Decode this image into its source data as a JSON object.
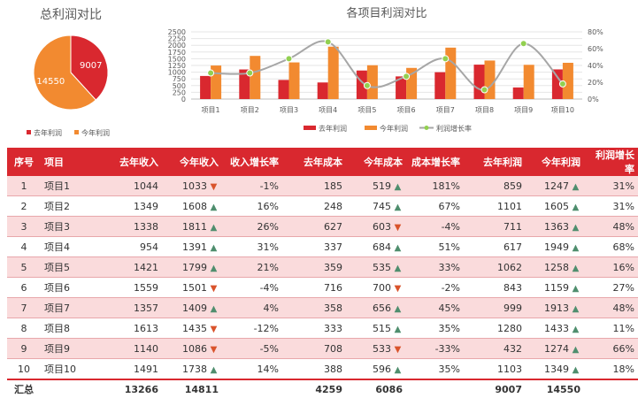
{
  "pie": {
    "title": "总利润对比",
    "legend": [
      "去年利润",
      "今年利润"
    ],
    "chart_data": {
      "type": "pie",
      "labels": [
        "去年利润",
        "今年利润"
      ],
      "values": [
        9007,
        14550
      ],
      "colors": [
        "#d9282f",
        "#f28a30"
      ]
    }
  },
  "combo": {
    "title": "各项目利润对比",
    "legend": [
      "去年利润",
      "今年利润",
      "利润增长率"
    ],
    "colors": {
      "last": "#d9282f",
      "this": "#f28a30",
      "rate": "#a6a6a6",
      "rate_marker": "#92d050"
    }
  },
  "chart_data": {
    "type": "bar",
    "categories": [
      "项目1",
      "项目2",
      "项目3",
      "项目4",
      "项目5",
      "项目6",
      "项目7",
      "项目8",
      "项目9",
      "项目10"
    ],
    "series": [
      {
        "name": "去年利润",
        "type": "bar",
        "axis": "left",
        "values": [
          859,
          1101,
          711,
          617,
          1062,
          843,
          999,
          1280,
          432,
          1103
        ]
      },
      {
        "name": "今年利润",
        "type": "bar",
        "axis": "left",
        "values": [
          1247,
          1605,
          1363,
          1949,
          1258,
          1159,
          1913,
          1433,
          1274,
          1349
        ]
      },
      {
        "name": "利润增长率",
        "type": "line",
        "axis": "right",
        "values": [
          31,
          31,
          48,
          68,
          16,
          27,
          48,
          11,
          66,
          18
        ]
      }
    ],
    "ylim": [
      0,
      2500
    ],
    "y_ticks": [
      "0",
      "250",
      "500",
      "750",
      "1000",
      "1250",
      "1500",
      "1750",
      "2000",
      "2250",
      "2500"
    ],
    "y2lim": [
      0,
      80
    ],
    "y2_ticks": [
      "0%",
      "20%",
      "40%",
      "60%",
      "80%"
    ],
    "legend_position": "bottom"
  },
  "table": {
    "headers": [
      "序号",
      "项目",
      "去年收入",
      "今年收入",
      "收入增长率",
      "去年成本",
      "今年成本",
      "成本增长率",
      "去年利润",
      "今年利润",
      "利润增长率"
    ],
    "rows": [
      {
        "no": "1",
        "name": "项目1",
        "inc_last": "1044",
        "inc_this": "1033",
        "inc_dir": "down",
        "inc_rate": "-1%",
        "cost_last": "185",
        "cost_this": "519",
        "cost_dir": "up",
        "cost_rate": "181%",
        "prof_last": "859",
        "prof_this": "1247",
        "prof_dir": "up",
        "prof_rate": "31%"
      },
      {
        "no": "2",
        "name": "项目2",
        "inc_last": "1349",
        "inc_this": "1608",
        "inc_dir": "up",
        "inc_rate": "16%",
        "cost_last": "248",
        "cost_this": "745",
        "cost_dir": "up",
        "cost_rate": "67%",
        "prof_last": "1101",
        "prof_this": "1605",
        "prof_dir": "up",
        "prof_rate": "31%"
      },
      {
        "no": "3",
        "name": "项目3",
        "inc_last": "1338",
        "inc_this": "1811",
        "inc_dir": "up",
        "inc_rate": "26%",
        "cost_last": "627",
        "cost_this": "603",
        "cost_dir": "down",
        "cost_rate": "-4%",
        "prof_last": "711",
        "prof_this": "1363",
        "prof_dir": "up",
        "prof_rate": "48%"
      },
      {
        "no": "4",
        "name": "项目4",
        "inc_last": "954",
        "inc_this": "1391",
        "inc_dir": "up",
        "inc_rate": "31%",
        "cost_last": "337",
        "cost_this": "684",
        "cost_dir": "up",
        "cost_rate": "51%",
        "prof_last": "617",
        "prof_this": "1949",
        "prof_dir": "up",
        "prof_rate": "68%"
      },
      {
        "no": "5",
        "name": "项目5",
        "inc_last": "1421",
        "inc_this": "1799",
        "inc_dir": "up",
        "inc_rate": "21%",
        "cost_last": "359",
        "cost_this": "535",
        "cost_dir": "up",
        "cost_rate": "33%",
        "prof_last": "1062",
        "prof_this": "1258",
        "prof_dir": "up",
        "prof_rate": "16%"
      },
      {
        "no": "6",
        "name": "项目6",
        "inc_last": "1559",
        "inc_this": "1501",
        "inc_dir": "down",
        "inc_rate": "-4%",
        "cost_last": "716",
        "cost_this": "700",
        "cost_dir": "down",
        "cost_rate": "-2%",
        "prof_last": "843",
        "prof_this": "1159",
        "prof_dir": "up",
        "prof_rate": "27%"
      },
      {
        "no": "7",
        "name": "项目7",
        "inc_last": "1357",
        "inc_this": "1409",
        "inc_dir": "up",
        "inc_rate": "4%",
        "cost_last": "358",
        "cost_this": "656",
        "cost_dir": "up",
        "cost_rate": "45%",
        "prof_last": "999",
        "prof_this": "1913",
        "prof_dir": "up",
        "prof_rate": "48%"
      },
      {
        "no": "8",
        "name": "项目8",
        "inc_last": "1613",
        "inc_this": "1435",
        "inc_dir": "down",
        "inc_rate": "-12%",
        "cost_last": "333",
        "cost_this": "515",
        "cost_dir": "up",
        "cost_rate": "35%",
        "prof_last": "1280",
        "prof_this": "1433",
        "prof_dir": "up",
        "prof_rate": "11%"
      },
      {
        "no": "9",
        "name": "项目9",
        "inc_last": "1140",
        "inc_this": "1086",
        "inc_dir": "down",
        "inc_rate": "-5%",
        "cost_last": "708",
        "cost_this": "533",
        "cost_dir": "down",
        "cost_rate": "-33%",
        "prof_last": "432",
        "prof_this": "1274",
        "prof_dir": "up",
        "prof_rate": "66%"
      },
      {
        "no": "10",
        "name": "项目10",
        "inc_last": "1491",
        "inc_this": "1738",
        "inc_dir": "up",
        "inc_rate": "14%",
        "cost_last": "388",
        "cost_this": "596",
        "cost_dir": "up",
        "cost_rate": "35%",
        "prof_last": "1103",
        "prof_this": "1349",
        "prof_dir": "up",
        "prof_rate": "18%"
      }
    ],
    "total": {
      "label": "汇总",
      "inc_last": "13266",
      "inc_this": "14811",
      "cost_last": "4259",
      "cost_this": "6086",
      "prof_last": "9007",
      "prof_this": "14550"
    }
  }
}
